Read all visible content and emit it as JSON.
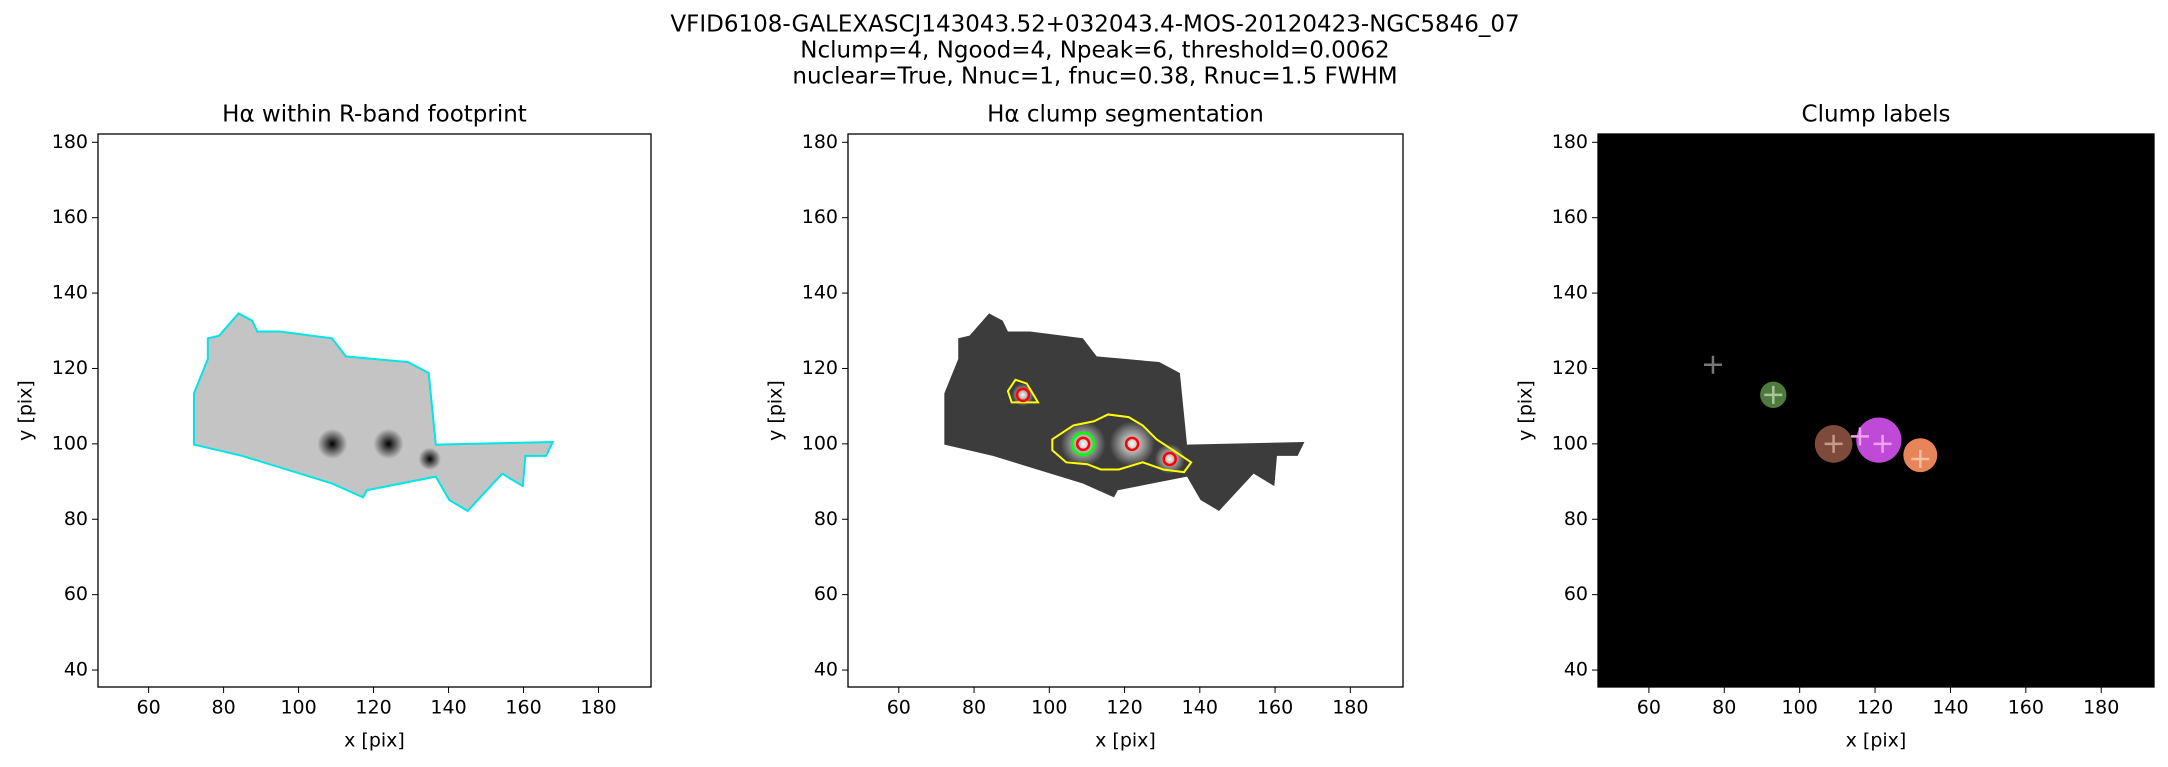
{
  "suptitle": [
    "VFID6108-GALEXASCJ143043.52+032043.4-MOS-20120423-NGC5846_07",
    "Nclump=4, Ngood=4, Npeak=6, threshold=0.0062",
    "nuclear=True, Nnuc=1, fnuc=0.38, Rnuc=1.5 FWHM"
  ],
  "chart_data": [
    {
      "type": "image",
      "title": "Hα within R-band footprint",
      "xlabel": "x [pix]",
      "ylabel": "y [pix]",
      "xlim": [
        46.5,
        194
      ],
      "ylim": [
        35.5,
        182.2
      ],
      "xticks": [
        60,
        80,
        100,
        120,
        140,
        160,
        180
      ],
      "yticks": [
        40,
        60,
        80,
        100,
        120,
        140,
        160,
        180
      ],
      "background": "#ffffff",
      "fill_color": "#c4c4c4",
      "outline_color": "#00e5e5",
      "footprint": {
        "x": [
          75.8,
          78.8,
          84,
          87.6,
          89,
          94.9,
          108.9,
          112.6,
          129.2,
          134.7,
          136.6,
          167.8,
          166,
          160.5,
          159.8,
          154.3,
          145.1,
          140.2,
          136.6,
          118.2,
          117.2,
          108.9,
          85,
          72.1,
          72.1,
          75.8
        ],
        "y": [
          128,
          128.7,
          134.6,
          132.7,
          129.8,
          129.8,
          128,
          123.2,
          121.7,
          118.8,
          99.8,
          100.5,
          96.8,
          96.8,
          88.8,
          92.1,
          82.2,
          85.1,
          91.3,
          87.7,
          85.8,
          89.5,
          96.8,
          99.8,
          113.4,
          122.5
        ]
      },
      "blobs": {
        "x": [
          109,
          124,
          135
        ],
        "y": [
          100,
          100,
          96
        ],
        "r": [
          4,
          4,
          3
        ],
        "color": "#000000"
      }
    },
    {
      "type": "image",
      "title": "Hα clump segmentation",
      "xlabel": "x [pix]",
      "ylabel": "y [pix]",
      "xlim": [
        46.5,
        194
      ],
      "ylim": [
        35.5,
        182.2
      ],
      "xticks": [
        60,
        80,
        100,
        120,
        140,
        160,
        180
      ],
      "yticks": [
        40,
        60,
        80,
        100,
        120,
        140,
        160,
        180
      ],
      "background": "#ffffff",
      "fill_color": "#3c3c3c",
      "footprint": {
        "x": [
          75.8,
          78.8,
          84,
          87.6,
          89,
          94.9,
          108.9,
          112.6,
          129.2,
          134.7,
          136.6,
          167.8,
          166,
          160.5,
          159.8,
          154.3,
          145.1,
          140.2,
          136.6,
          118.2,
          117.2,
          108.9,
          85,
          72.1,
          72.1,
          75.8
        ],
        "y": [
          128,
          128.7,
          134.6,
          132.7,
          129.8,
          129.8,
          128,
          123.2,
          121.7,
          118.8,
          99.8,
          100.5,
          96.8,
          96.8,
          88.8,
          92.1,
          82.2,
          85.1,
          91.3,
          87.7,
          85.8,
          89.5,
          96.8,
          99.8,
          113.4,
          122.5
        ]
      },
      "blobs": {
        "x": [
          109,
          122,
          132,
          93
        ],
        "y": [
          100,
          100,
          96,
          113
        ],
        "r": [
          6,
          6,
          4,
          3
        ],
        "color": "#ffffff"
      },
      "contours": [
        {
          "color": "#ffff00",
          "x": [
            100.8,
            106.4,
            111.9,
            115.6,
            121.1,
            124.8,
            128.5,
            134,
            137.7,
            135.8,
            130.3,
            124.8,
            118.5,
            113.7,
            110.1,
            104.5,
            100.8
          ],
          "y": [
            101.2,
            104.9,
            106,
            107.8,
            107.1,
            104.9,
            101.2,
            97.6,
            95.1,
            92.5,
            93.2,
            95.1,
            93.2,
            93.2,
            94.6,
            95.1,
            98.3
          ]
        },
        {
          "color": "#ffff00",
          "x": [
            89,
            91,
            94,
            97,
            93,
            90
          ],
          "y": [
            114,
            117,
            116,
            111,
            111,
            111
          ]
        }
      ],
      "nuclear": {
        "x": [
          109
        ],
        "y": [
          100
        ],
        "color": "#00ff00"
      },
      "peaks": {
        "x": [
          93,
          109,
          122,
          132
        ],
        "y": [
          113,
          100,
          100,
          96
        ],
        "color": "#ff0000"
      }
    },
    {
      "type": "image",
      "title": "Clump labels",
      "xlabel": "x [pix]",
      "ylabel": "y [pix]",
      "xlim": [
        46.5,
        194
      ],
      "ylim": [
        35.5,
        182.2
      ],
      "xticks": [
        60,
        80,
        100,
        120,
        140,
        160,
        180
      ],
      "yticks": [
        40,
        60,
        80,
        100,
        120,
        140,
        160,
        180
      ],
      "background": "#000000",
      "clumps": {
        "x": [
          93,
          109,
          121,
          132
        ],
        "y": [
          113,
          100,
          101,
          97
        ],
        "r": [
          3.5,
          5,
          6,
          4.5
        ],
        "colors": [
          "#4f7a3e",
          "#7d4a3c",
          "#c04ad8",
          "#e8845a"
        ]
      },
      "centers": {
        "x": [
          77,
          93,
          109,
          116,
          122,
          132
        ],
        "y": [
          121,
          113,
          100,
          102,
          100,
          96
        ],
        "colors": [
          "#777777",
          "#aac49a",
          "#c89a8a",
          "#f0a0f0",
          "#f0a0f0",
          "#f6c0a0"
        ]
      }
    }
  ]
}
